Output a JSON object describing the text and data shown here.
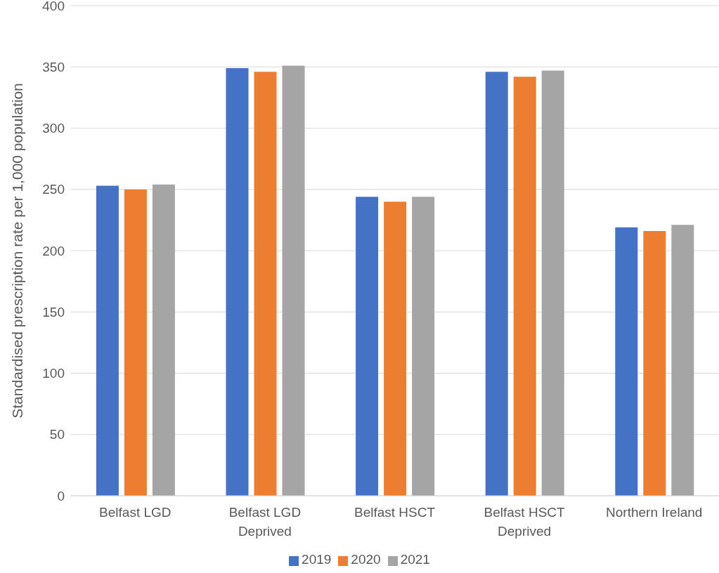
{
  "chart_data": {
    "type": "bar",
    "ylabel": "Standardised prescription rate per 1,000 population",
    "categories": [
      "Belfast LGD",
      "Belfast LGD Deprived",
      "Belfast HSCT",
      "Belfast HSCT Deprived",
      "Northern Ireland"
    ],
    "series": [
      {
        "name": "2019",
        "color": "#4472c4",
        "values": [
          253,
          349,
          244,
          346,
          219
        ]
      },
      {
        "name": "2020",
        "color": "#ed7d31",
        "values": [
          250,
          346,
          240,
          342,
          216
        ]
      },
      {
        "name": "2021",
        "color": "#a5a5a5",
        "values": [
          254,
          351,
          244,
          347,
          221
        ]
      }
    ],
    "ylim": [
      0,
      400
    ],
    "yticks": [
      0,
      50,
      100,
      150,
      200,
      250,
      300,
      350,
      400
    ],
    "grid": "y",
    "legend": "bottom"
  }
}
